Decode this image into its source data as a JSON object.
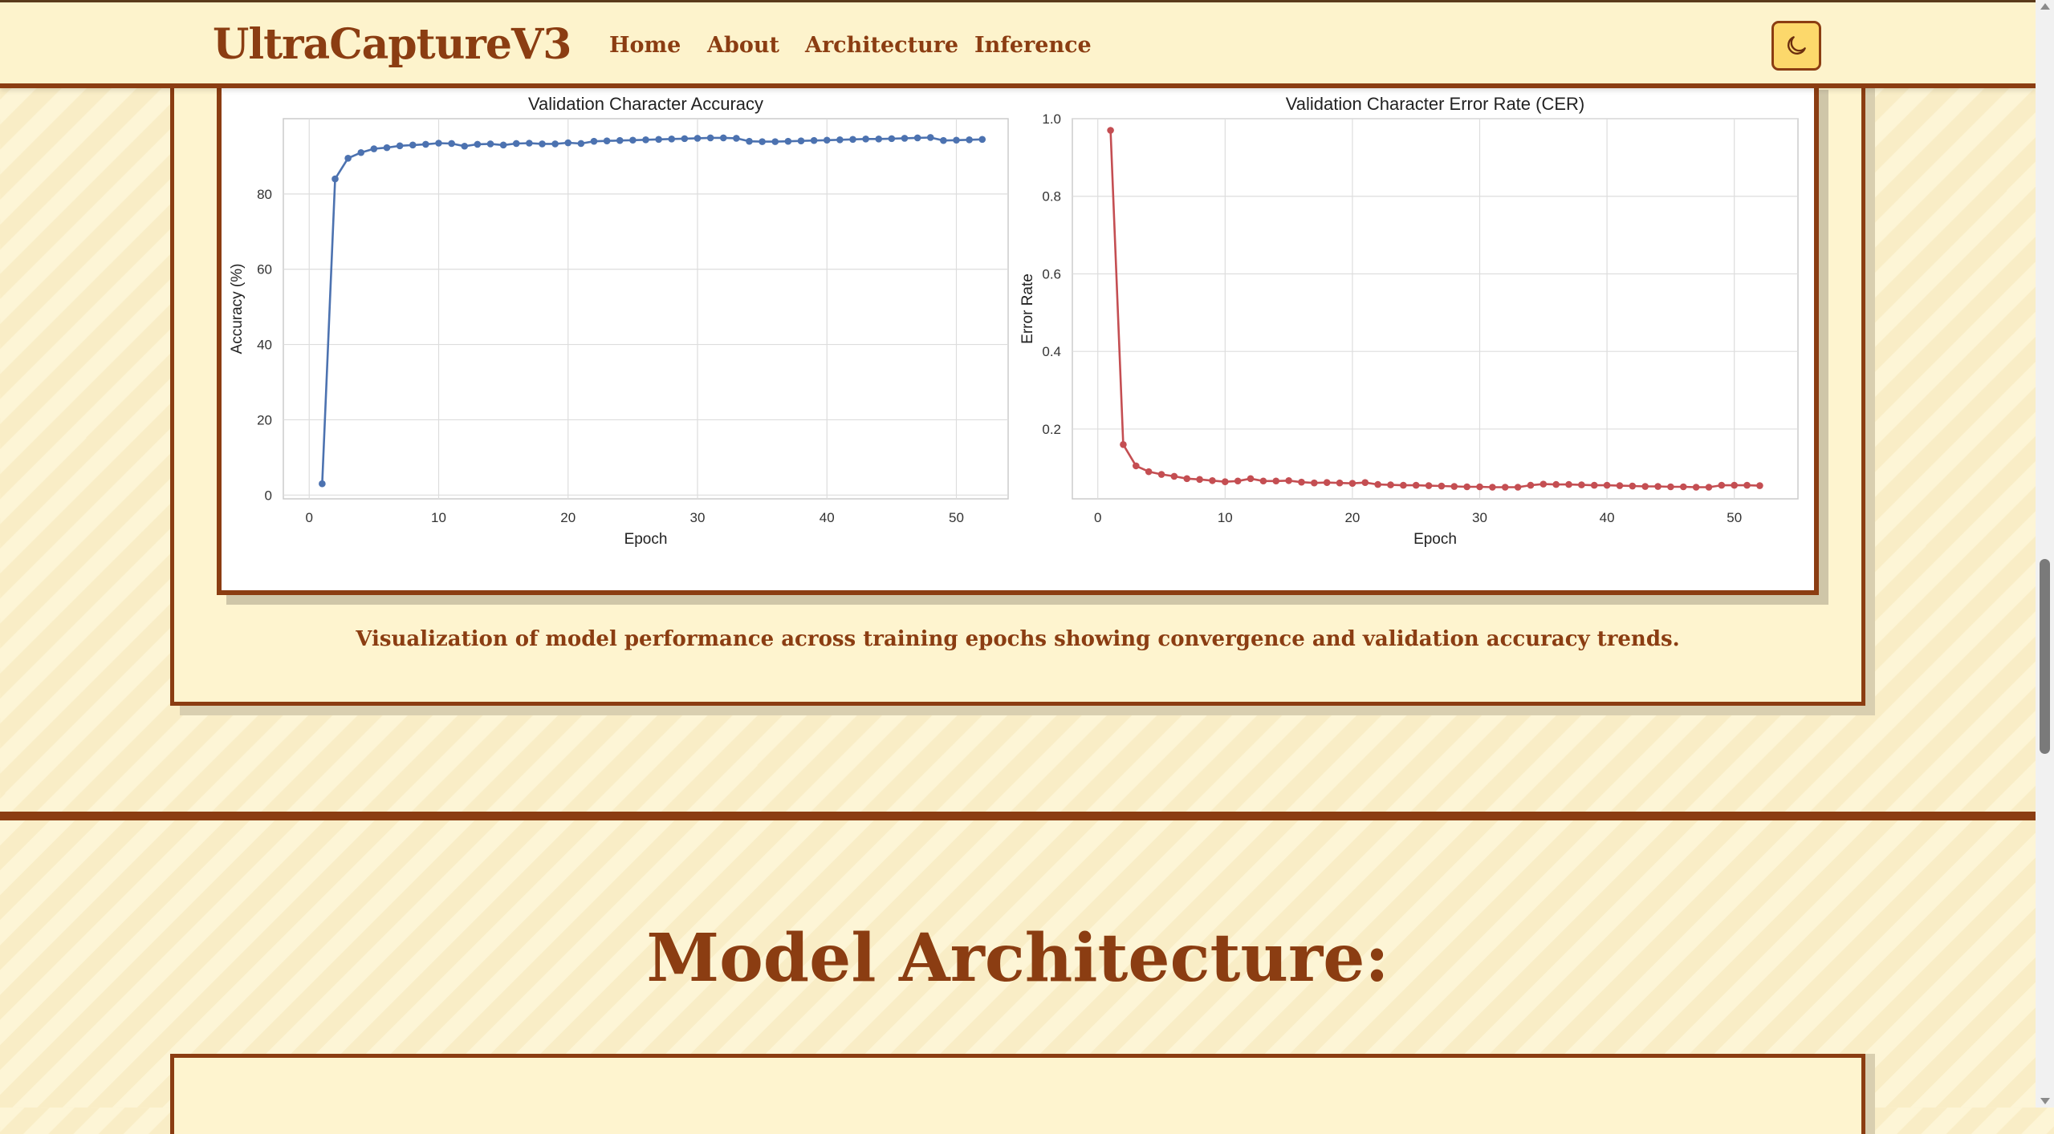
{
  "nav": {
    "brand": "UltraCaptureV3",
    "links": [
      "Home",
      "About",
      "Architecture",
      "Inference"
    ],
    "theme_toggle_icon": "moon-icon"
  },
  "training": {
    "caption": "Visualization of model performance across training epochs showing convergence and validation accuracy trends."
  },
  "architecture": {
    "title": "Model Architecture:"
  },
  "chart_data": [
    {
      "type": "line",
      "title": "Validation Character Accuracy",
      "xlabel": "Epoch",
      "ylabel": "Accuracy (%)",
      "xlim": [
        -2,
        54
      ],
      "ylim": [
        -1,
        100
      ],
      "xticks": [
        0,
        10,
        20,
        30,
        40,
        50
      ],
      "yticks": [
        0,
        20,
        40,
        60,
        80
      ],
      "grid": true,
      "color": "#4c72b0",
      "x": [
        1,
        2,
        3,
        4,
        5,
        6,
        7,
        8,
        9,
        10,
        11,
        12,
        13,
        14,
        15,
        16,
        17,
        18,
        19,
        20,
        21,
        22,
        23,
        24,
        25,
        26,
        27,
        28,
        29,
        30,
        31,
        32,
        33,
        34,
        35,
        36,
        37,
        38,
        39,
        40,
        41,
        42,
        43,
        44,
        45,
        46,
        47,
        48,
        49,
        50,
        51,
        52
      ],
      "y": [
        3,
        84,
        89.5,
        91,
        92,
        92.3,
        92.8,
        93,
        93.2,
        93.5,
        93.4,
        92.7,
        93.2,
        93.3,
        93,
        93.4,
        93.5,
        93.3,
        93.3,
        93.6,
        93.4,
        94,
        94.1,
        94.2,
        94.3,
        94.4,
        94.5,
        94.6,
        94.7,
        94.8,
        94.9,
        94.9,
        94.8,
        94,
        93.9,
        93.9,
        94,
        94.1,
        94.2,
        94.3,
        94.4,
        94.5,
        94.6,
        94.6,
        94.7,
        94.8,
        94.9,
        95,
        94.2,
        94.3,
        94.4,
        94.5
      ]
    },
    {
      "type": "line",
      "title": "Validation Character Error Rate (CER)",
      "xlabel": "Epoch",
      "ylabel": "Error Rate",
      "xlim": [
        -2,
        55
      ],
      "ylim": [
        0.02,
        1.0
      ],
      "xticks": [
        0,
        10,
        20,
        30,
        40,
        50
      ],
      "yticks": [
        0.2,
        0.4,
        0.6,
        0.8,
        1.0
      ],
      "grid": true,
      "color": "#c44e52",
      "x": [
        1,
        2,
        3,
        4,
        5,
        6,
        7,
        8,
        9,
        10,
        11,
        12,
        13,
        14,
        15,
        16,
        17,
        18,
        19,
        20,
        21,
        22,
        23,
        24,
        25,
        26,
        27,
        28,
        29,
        30,
        31,
        32,
        33,
        34,
        35,
        36,
        37,
        38,
        39,
        40,
        41,
        42,
        43,
        44,
        45,
        46,
        47,
        48,
        49,
        50,
        51,
        52
      ],
      "y": [
        0.97,
        0.16,
        0.105,
        0.09,
        0.083,
        0.078,
        0.072,
        0.07,
        0.067,
        0.064,
        0.066,
        0.072,
        0.066,
        0.066,
        0.067,
        0.063,
        0.061,
        0.062,
        0.061,
        0.06,
        0.062,
        0.057,
        0.056,
        0.055,
        0.055,
        0.054,
        0.053,
        0.052,
        0.051,
        0.051,
        0.05,
        0.05,
        0.05,
        0.055,
        0.058,
        0.057,
        0.057,
        0.056,
        0.055,
        0.055,
        0.054,
        0.053,
        0.052,
        0.052,
        0.051,
        0.051,
        0.05,
        0.05,
        0.055,
        0.055,
        0.055,
        0.054
      ]
    }
  ]
}
